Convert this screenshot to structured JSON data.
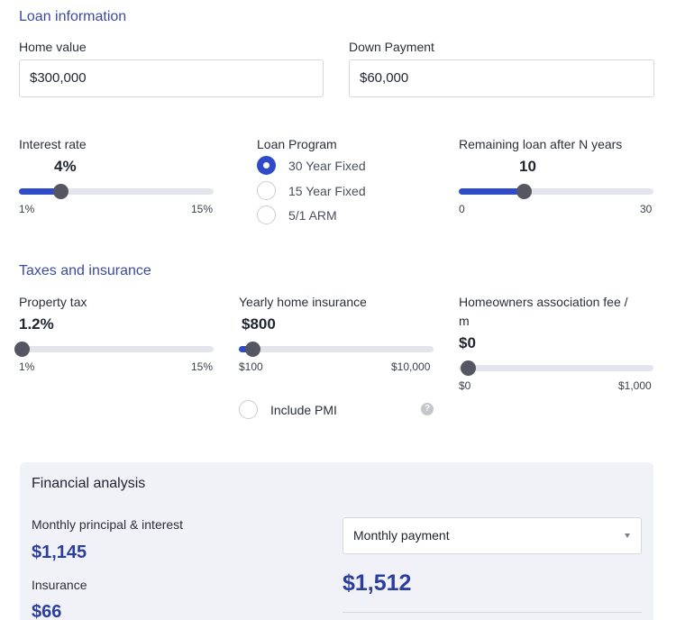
{
  "loan_info": {
    "title": "Loan information",
    "home_value": {
      "label": "Home value",
      "value": "$300,000"
    },
    "down_payment": {
      "label": "Down Payment",
      "value": "$60,000"
    },
    "interest_rate": {
      "label": "Interest rate",
      "value": "4%",
      "min": "1%",
      "max": "15%",
      "level": 0.214
    },
    "loan_program": {
      "label": "Loan Program",
      "options": [
        "30 Year Fixed",
        "15 Year Fixed",
        "5/1 ARM"
      ],
      "selected": "30 Year Fixed"
    },
    "remaining": {
      "label": "Remaining loan after N years",
      "value": "10",
      "min": "0",
      "max": "30",
      "level": 0.333
    }
  },
  "taxes": {
    "title": "Taxes and insurance",
    "property_tax": {
      "label": "Property tax",
      "value": "1.2%",
      "min": "1%",
      "max": "15%",
      "level": 0.014
    },
    "home_insurance": {
      "label": "Yearly home insurance",
      "value": "$800",
      "min": "$100",
      "max": "$10,000",
      "level": 0.071
    },
    "hoa": {
      "label_line1": "Homeowners association fee /",
      "label_line2": "m",
      "value": "$0",
      "min": "$0",
      "max": "$1,000",
      "level": 0.0
    },
    "pmi": {
      "label": "Include PMI",
      "checked": false,
      "help_icon": "question-icon"
    }
  },
  "analysis": {
    "title": "Financial analysis",
    "principal_interest": {
      "label": "Monthly principal & interest",
      "value": "$1,145"
    },
    "insurance": {
      "label": "Insurance",
      "value": "$66"
    },
    "payment_select": {
      "selected": "Monthly payment",
      "icon": "chevron-down-icon"
    },
    "total": "$1,512"
  },
  "colors": {
    "accent": "#2f4bc7",
    "heading": "#3a4aa0",
    "money": "#2c3e9c",
    "panel_bg": "#f1f2f7"
  }
}
